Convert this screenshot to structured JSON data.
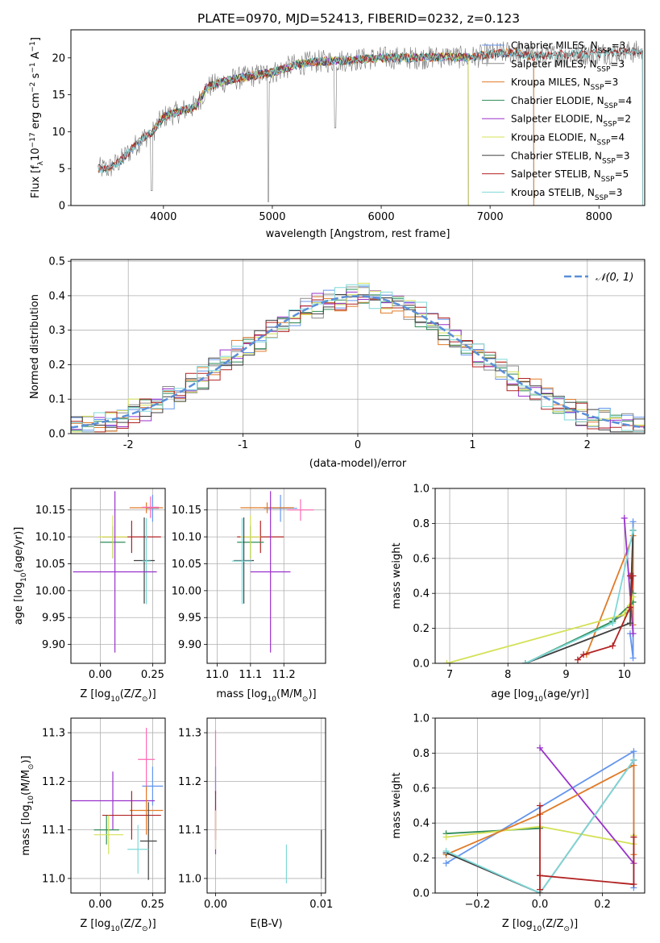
{
  "chart_data": [
    {
      "id": "spectrum",
      "type": "line",
      "title": "PLATE=0970, MJD=52413, FIBERID=0232, z=0.123",
      "xlabel": "wavelength [Angstrom, rest frame]",
      "ylabel_parts": [
        "Flux [f",
        "λ",
        "10",
        "−17",
        " erg cm",
        "−2",
        " s",
        "−1",
        " A",
        "−1",
        "]"
      ],
      "xlim": [
        3150,
        8420
      ],
      "ylim": [
        0,
        23.8
      ],
      "xticks": [
        4000,
        5000,
        6000,
        7000,
        8000
      ],
      "yticks": [
        0,
        5,
        10,
        15,
        20
      ],
      "grid": false,
      "legend_position": "upper-right",
      "legend": [
        {
          "name": "Chabrier MILES, N",
          "sub": "SSP",
          "suffix": "=3",
          "color": "#6495ed"
        },
        {
          "name": "Salpeter MILES, N",
          "sub": "SSP",
          "suffix": "=3",
          "color": "#8b8b8b"
        },
        {
          "name": "Kroupa MILES, N",
          "sub": "SSP",
          "suffix": "=3",
          "color": "#e07b28"
        },
        {
          "name": "Chabrier ELODIE, N",
          "sub": "SSP",
          "suffix": "=4",
          "color": "#2e8b57"
        },
        {
          "name": "Salpeter ELODIE, N",
          "sub": "SSP",
          "suffix": "=2",
          "color": "#9932cc"
        },
        {
          "name": "Kroupa ELODIE, N",
          "sub": "SSP",
          "suffix": "=4",
          "color": "#d4e157"
        },
        {
          "name": "Chabrier STELIB, N",
          "sub": "SSP",
          "suffix": "=3",
          "color": "#404040"
        },
        {
          "name": "Salpeter STELIB, N",
          "sub": "SSP",
          "suffix": "=5",
          "color": "#b22222"
        },
        {
          "name": "Kroupa STELIB, N",
          "sub": "SSP",
          "suffix": "=3",
          "color": "#7fd8d8"
        }
      ],
      "continuum": {
        "x": [
          3400,
          3500,
          3600,
          3700,
          3800,
          3900,
          4000,
          4100,
          4200,
          4300,
          4400,
          4500,
          4600,
          4800,
          5000,
          5200,
          5400,
          5600,
          5800,
          6000,
          6200,
          6400,
          6600,
          6800,
          7000,
          7200,
          7400,
          7600,
          7800,
          8000,
          8200
        ],
        "y": [
          5.0,
          5.0,
          6.0,
          7.5,
          9.0,
          10.0,
          12.0,
          12.5,
          13.0,
          13.5,
          16.0,
          16.5,
          17.0,
          17.5,
          18.0,
          19.0,
          19.5,
          19.6,
          19.8,
          20.0,
          20.0,
          20.0,
          20.2,
          20.0,
          20.5,
          20.8,
          20.2,
          20.4,
          20.5,
          20.6,
          20.8
        ]
      },
      "model_ranges": [
        {
          "name": "Chabrier MILES",
          "x": [
            3400,
            7400
          ]
        },
        {
          "name": "Salpeter MILES",
          "x": [
            3400,
            7400
          ]
        },
        {
          "name": "Kroupa MILES",
          "x": [
            3400,
            7400
          ]
        },
        {
          "name": "Chabrier ELODIE",
          "x": [
            3900,
            6800
          ]
        },
        {
          "name": "Salpeter ELODIE",
          "x": [
            3900,
            6800
          ]
        },
        {
          "name": "Kroupa ELODIE",
          "x": [
            3900,
            6800
          ]
        },
        {
          "name": "Chabrier STELIB",
          "x": [
            3400,
            8400
          ]
        },
        {
          "name": "Salpeter STELIB",
          "x": [
            3400,
            8400
          ]
        },
        {
          "name": "Kroupa STELIB",
          "x": [
            3400,
            8400
          ]
        }
      ]
    },
    {
      "id": "residuals",
      "type": "histogram",
      "xlabel": "(data-model)/error",
      "ylabel": "Normed distribution",
      "xlim": [
        -2.5,
        2.5
      ],
      "ylim": [
        0,
        0.505
      ],
      "xticks": [
        -2,
        -1,
        0,
        1,
        2
      ],
      "yticks": [
        0.0,
        0.1,
        0.2,
        0.3,
        0.4,
        0.5
      ],
      "grid": true,
      "legend_position": "upper-right",
      "reference_curve": {
        "label": "𝒩(0, 1)",
        "color": "#5b8fd9"
      },
      "bin_edges_from": -2.5,
      "bin_width": 0.1,
      "series": [
        {
          "color": "#6495ed",
          "offset": 0.01
        },
        {
          "color": "#8b8b8b",
          "offset": -0.015
        },
        {
          "color": "#e07b28",
          "offset": 0.02
        },
        {
          "color": "#2e8b57",
          "offset": -0.01
        },
        {
          "color": "#9932cc",
          "offset": 0.03
        },
        {
          "color": "#d4e157",
          "offset": -0.02
        },
        {
          "color": "#404040",
          "offset": 0.005
        },
        {
          "color": "#b22222",
          "offset": -0.005
        },
        {
          "color": "#7fd8d8",
          "offset": 0.015
        }
      ]
    },
    {
      "id": "age_vs_Z",
      "type": "scatter",
      "xlabel_parts": [
        "Z [log",
        "10",
        "(Z/Z",
        "⊙",
        ")]"
      ],
      "ylabel_parts": [
        "age  [log",
        "10",
        "(age/yr)]"
      ],
      "xlim": [
        -0.14,
        0.31
      ],
      "ylim": [
        9.865,
        10.19
      ],
      "xticks": [
        0.0,
        0.25
      ],
      "xtick_labels": [
        "0.00",
        "0.25"
      ],
      "yticks": [
        9.9,
        9.95,
        10.0,
        10.05,
        10.1,
        10.15
      ],
      "ytick_labels": [
        "9.90",
        "9.95",
        "10.00",
        "10.05",
        "10.10",
        "10.15"
      ],
      "grid": true,
      "points": [
        {
          "color": "#6495ed",
          "x": 0.25,
          "y": 10.153,
          "xerr": 0.03,
          "yerr": 0.025
        },
        {
          "color": "#e07b28",
          "x": 0.22,
          "y": 10.154,
          "xerr": 0.08,
          "yerr": 0.01
        },
        {
          "color": "#ff69b4",
          "x": 0.24,
          "y": 10.155,
          "xerr": 0.04,
          "yerr": 0.02
        },
        {
          "color": "#b22222",
          "x": 0.15,
          "y": 10.1,
          "xerr": 0.14,
          "yerr": 0.03
        },
        {
          "color": "#2e8b57",
          "x": 0.06,
          "y": 10.09,
          "xerr": 0.06,
          "yerr": 0.03
        },
        {
          "color": "#d4e157",
          "x": 0.06,
          "y": 10.1,
          "xerr": 0.07,
          "yerr": 0.04
        },
        {
          "color": "#404040",
          "x": 0.21,
          "y": 10.056,
          "xerr": 0.05,
          "yerr": 0.08
        },
        {
          "color": "#7fd8d8",
          "x": 0.22,
          "y": 10.055,
          "xerr": 0.02,
          "yerr": 0.08
        },
        {
          "color": "#9932cc",
          "x": 0.07,
          "y": 10.035,
          "xerr": 0.2,
          "yerr": 0.15
        }
      ]
    },
    {
      "id": "age_vs_mass",
      "type": "scatter",
      "xlabel_parts": [
        "mass [log",
        "10",
        "(M/M",
        "⊙",
        ")]"
      ],
      "xlim": [
        10.97,
        11.325
      ],
      "ylim": [
        9.865,
        10.19
      ],
      "xticks": [
        11.0,
        11.1,
        11.2
      ],
      "xtick_labels": [
        "11.0",
        "11.1",
        "11.2"
      ],
      "yticks": [
        9.9,
        9.95,
        10.0,
        10.05,
        10.1,
        10.15
      ],
      "ytick_labels": [
        "9.90",
        "9.95",
        "10.00",
        "10.05",
        "10.10",
        "10.15"
      ],
      "grid": true,
      "points": [
        {
          "color": "#6495ed",
          "x": 11.19,
          "y": 10.153,
          "xerr": 0.05,
          "yerr": 0.025
        },
        {
          "color": "#e07b28",
          "x": 11.15,
          "y": 10.154,
          "xerr": 0.08,
          "yerr": 0.01
        },
        {
          "color": "#ff69b4",
          "x": 11.25,
          "y": 10.15,
          "xerr": 0.04,
          "yerr": 0.02
        },
        {
          "color": "#b22222",
          "x": 11.13,
          "y": 10.1,
          "xerr": 0.07,
          "yerr": 0.03
        },
        {
          "color": "#2e8b57",
          "x": 11.1,
          "y": 10.09,
          "xerr": 0.04,
          "yerr": 0.03
        },
        {
          "color": "#d4e157",
          "x": 11.1,
          "y": 10.1,
          "xerr": 0.03,
          "yerr": 0.04
        },
        {
          "color": "#404040",
          "x": 11.08,
          "y": 10.056,
          "xerr": 0.03,
          "yerr": 0.08
        },
        {
          "color": "#7fd8d8",
          "x": 11.075,
          "y": 10.055,
          "xerr": 0.03,
          "yerr": 0.08
        },
        {
          "color": "#9932cc",
          "x": 11.16,
          "y": 10.035,
          "xerr": 0.06,
          "yerr": 0.15
        }
      ]
    },
    {
      "id": "mass_weight_vs_age",
      "type": "line",
      "xlabel_parts": [
        "age  [log",
        "10",
        "(age/yr)]"
      ],
      "ylabel": "mass weight",
      "xlim": [
        6.75,
        10.35
      ],
      "ylim": [
        0,
        1.0
      ],
      "xticks": [
        7,
        8,
        9,
        10
      ],
      "xtick_labels": [
        "7",
        "8",
        "9",
        "10"
      ],
      "yticks": [
        0.0,
        0.2,
        0.4,
        0.6,
        0.8,
        1.0
      ],
      "ytick_labels": [
        "0.0",
        "0.2",
        "0.4",
        "0.6",
        "0.8",
        "1.0"
      ],
      "grid": true,
      "series": [
        {
          "color": "#6495ed",
          "x": [
            10.15,
            10.15,
            10.1
          ],
          "y": [
            0.81,
            0.03,
            0.17
          ]
        },
        {
          "color": "#8b8b8b",
          "x": [
            10.15,
            10.1,
            9.8
          ],
          "y": [
            0.76,
            0.3,
            0.24
          ]
        },
        {
          "color": "#e07b28",
          "x": [
            9.35,
            10.15,
            10.15
          ],
          "y": [
            0.05,
            0.73,
            0.22
          ]
        },
        {
          "color": "#2e8b57",
          "x": [
            8.3,
            9.8,
            10.15,
            10.15
          ],
          "y": [
            0.0,
            0.24,
            0.35,
            0.4
          ]
        },
        {
          "color": "#9932cc",
          "x": [
            10.0,
            10.15
          ],
          "y": [
            0.83,
            0.17
          ]
        },
        {
          "color": "#d4e157",
          "x": [
            6.95,
            10.0,
            10.15,
            10.1
          ],
          "y": [
            0.0,
            0.28,
            0.38,
            0.33
          ]
        },
        {
          "color": "#404040",
          "x": [
            8.3,
            10.1,
            10.15
          ],
          "y": [
            0.0,
            0.23,
            0.76
          ]
        },
        {
          "color": "#b22222",
          "x": [
            9.2,
            9.3,
            9.8,
            10.1,
            10.15,
            10.1
          ],
          "y": [
            0.02,
            0.05,
            0.1,
            0.32,
            0.5,
            0.5
          ]
        },
        {
          "color": "#7fd8d8",
          "x": [
            8.3,
            9.8,
            10.15
          ],
          "y": [
            0.0,
            0.23,
            0.76
          ]
        }
      ]
    },
    {
      "id": "mass_vs_Z",
      "type": "scatter",
      "xlabel_parts": [
        "Z [log",
        "10",
        "(Z/Z",
        "⊙",
        ")]"
      ],
      "ylabel_parts": [
        "mass [log",
        "10",
        "(M/M",
        "⊙",
        ")]"
      ],
      "xlim": [
        -0.14,
        0.31
      ],
      "ylim": [
        10.97,
        11.33
      ],
      "xticks": [
        0.0,
        0.25
      ],
      "xtick_labels": [
        "0.00",
        "0.25"
      ],
      "yticks": [
        11.0,
        11.1,
        11.2,
        11.3
      ],
      "ytick_labels": [
        "11.0",
        "11.1",
        "11.2",
        "11.3"
      ],
      "grid": true,
      "points": [
        {
          "color": "#ff69b4",
          "x": 0.22,
          "y": 11.245,
          "xerr": 0.04,
          "yerr": 0.065
        },
        {
          "color": "#6495ed",
          "x": 0.25,
          "y": 11.19,
          "xerr": 0.05,
          "yerr": 0.04
        },
        {
          "color": "#9932cc",
          "x": 0.06,
          "y": 11.16,
          "xerr": 0.2,
          "yerr": 0.06
        },
        {
          "color": "#e07b28",
          "x": 0.22,
          "y": 11.14,
          "xerr": 0.08,
          "yerr": 0.05
        },
        {
          "color": "#b22222",
          "x": 0.15,
          "y": 11.13,
          "xerr": 0.14,
          "yerr": 0.05
        },
        {
          "color": "#2e8b57",
          "x": 0.03,
          "y": 11.1,
          "xerr": 0.06,
          "yerr": 0.03
        },
        {
          "color": "#d4e157",
          "x": 0.04,
          "y": 11.09,
          "xerr": 0.07,
          "yerr": 0.04
        },
        {
          "color": "#404040",
          "x": 0.23,
          "y": 11.077,
          "xerr": 0.04,
          "yerr": 0.08
        },
        {
          "color": "#7fd8d8",
          "x": 0.18,
          "y": 11.06,
          "xerr": 0.05,
          "yerr": 0.05
        }
      ]
    },
    {
      "id": "mass_vs_EBV",
      "type": "scatter",
      "xlabel": "E(B-V)",
      "xlim": [
        -0.0008,
        0.0104
      ],
      "ylim": [
        10.97,
        11.33
      ],
      "xticks": [
        0.0,
        0.01
      ],
      "xtick_labels": [
        "0.00",
        "0.01"
      ],
      "yticks": [
        11.0,
        11.1,
        11.2,
        11.3
      ],
      "ytick_labels": [
        "11.0",
        "11.1",
        "11.2",
        "11.3"
      ],
      "grid": true,
      "points": [
        {
          "color": "#ff69b4",
          "x": 0.0,
          "y": 11.24,
          "xerr": 0.0,
          "yerr": 0.065
        },
        {
          "color": "#6495ed",
          "x": 0.0,
          "y": 11.19,
          "xerr": 0.0,
          "yerr": 0.04
        },
        {
          "color": "#9932cc",
          "x": 0.0,
          "y": 11.1,
          "xerr": 0.0,
          "yerr": 0.05
        },
        {
          "color": "#b22222",
          "x": 0.0,
          "y": 11.13,
          "xerr": 0.0,
          "yerr": 0.05
        },
        {
          "color": "#d4e157",
          "x": 0.0,
          "y": 11.1,
          "xerr": 0.0,
          "yerr": 0.04
        },
        {
          "color": "#7fd8d8",
          "x": 0.0067,
          "y": 11.03,
          "xerr": 0.0,
          "yerr": 0.04
        },
        {
          "color": "#404040",
          "x": 0.01,
          "y": 11.05,
          "xerr": 0.0,
          "yerr": 0.05
        }
      ]
    },
    {
      "id": "mass_weight_vs_Z",
      "type": "line",
      "xlabel_parts": [
        "Z [log",
        "10",
        "(Z/Z",
        "⊙",
        ")]"
      ],
      "ylabel": "mass weight",
      "xlim": [
        -0.335,
        0.335
      ],
      "ylim": [
        0,
        1.0
      ],
      "xticks": [
        -0.2,
        0.0,
        0.2
      ],
      "xtick_labels": [
        "−0.2",
        "0.0",
        "0.2"
      ],
      "yticks": [
        0.0,
        0.2,
        0.4,
        0.6,
        0.8,
        1.0
      ],
      "ytick_labels": [
        "0.0",
        "0.2",
        "0.4",
        "0.6",
        "0.8",
        "1.0"
      ],
      "grid": true,
      "series": [
        {
          "color": "#6495ed",
          "x": [
            -0.3,
            0.3,
            0.3
          ],
          "y": [
            0.17,
            0.81,
            0.03
          ]
        },
        {
          "color": "#2e8b57",
          "x": [
            -0.3,
            0.0
          ],
          "y": [
            0.34,
            0.37
          ]
        },
        {
          "color": "#d4e157",
          "x": [
            -0.3,
            0.0,
            0.3,
            0.3
          ],
          "y": [
            0.32,
            0.38,
            0.28,
            0.33
          ]
        },
        {
          "color": "#9932cc",
          "x": [
            0.0,
            0.3
          ],
          "y": [
            0.83,
            0.17
          ]
        },
        {
          "color": "#e07b28",
          "x": [
            -0.3,
            0.0,
            0.3,
            0.3
          ],
          "y": [
            0.22,
            0.45,
            0.73,
            0.22
          ]
        },
        {
          "color": "#404040",
          "x": [
            -0.3,
            0.0,
            0.3
          ],
          "y": [
            0.23,
            0.0,
            0.76
          ]
        },
        {
          "color": "#7fd8d8",
          "x": [
            -0.3,
            0.0,
            0.3
          ],
          "y": [
            0.24,
            0.0,
            0.76
          ]
        },
        {
          "color": "#b22222",
          "x": [
            0.0,
            0.0,
            0.0,
            0.3,
            0.3
          ],
          "y": [
            0.02,
            0.5,
            0.1,
            0.05,
            0.32
          ]
        }
      ]
    }
  ]
}
